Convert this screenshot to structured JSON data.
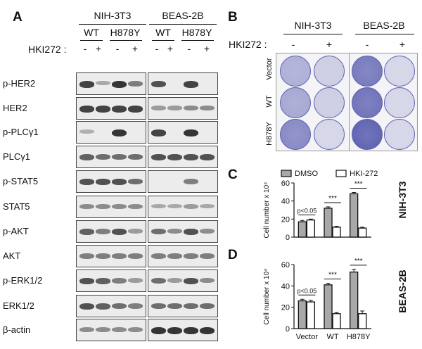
{
  "panel_a": {
    "letter": "A",
    "cell_lines": [
      "NIH-3T3",
      "BEAS-2B"
    ],
    "genotypes": [
      "WT",
      "H878Y",
      "WT",
      "H878Y"
    ],
    "treatment_label": "HKI272 :",
    "treatment_signs": [
      "-",
      "+",
      "-",
      "+",
      "-",
      "+",
      "-",
      "+"
    ],
    "rows": [
      "p-HER2",
      "HER2",
      "p-PLCγ1",
      "PLCγ1",
      "p-STAT5",
      "STAT5",
      "p-AKT",
      "AKT",
      "p-ERK1/2",
      "ERK1/2",
      "β-actin"
    ]
  },
  "panel_b": {
    "letter": "B",
    "cell_lines": [
      "NIH-3T3",
      "BEAS-2B"
    ],
    "treatment_label": "HKI272 :",
    "treatment_signs": [
      "-",
      "+",
      "-",
      "+"
    ],
    "row_labels": [
      "Vector",
      "WT",
      "H878Y"
    ],
    "colors": {
      "stain": "#5b5fb0",
      "plate": "#f4f4f6"
    }
  },
  "panel_c": {
    "letter": "C",
    "cell_line": "NIH-3T3"
  },
  "panel_d": {
    "letter": "D",
    "cell_line": "BEAS-2B"
  },
  "chart_data": [
    {
      "type": "bar",
      "panel": "C",
      "categories": [
        "Vector",
        "WT",
        "H878Y"
      ],
      "series": [
        {
          "name": "DMSO",
          "values": [
            17,
            32,
            48
          ],
          "errors": [
            1.5,
            1.5,
            1.5
          ],
          "color": "#a8a8a8"
        },
        {
          "name": "HKI-272",
          "values": [
            19,
            11,
            10
          ],
          "errors": [
            1.0,
            1.0,
            1.0
          ],
          "color": "#ffffff"
        }
      ],
      "ylabel": "Cell number x 10⁴",
      "ylim": [
        0,
        60
      ],
      "yticks": [
        0,
        20,
        40,
        60
      ],
      "show_xtick_labels": false,
      "legend": "top",
      "annotations": [
        "p<0.05",
        "***",
        "***"
      ]
    },
    {
      "type": "bar",
      "panel": "D",
      "categories": [
        "Vector",
        "WT",
        "H878Y"
      ],
      "series": [
        {
          "name": "DMSO",
          "values": [
            26,
            41,
            53
          ],
          "errors": [
            1.5,
            1.5,
            2.5
          ],
          "color": "#a8a8a8"
        },
        {
          "name": "HKI-272",
          "values": [
            25,
            14,
            14
          ],
          "errors": [
            1.5,
            1.0,
            2.5
          ],
          "color": "#ffffff"
        }
      ],
      "ylabel": "Cell number x 10⁴",
      "ylim": [
        0,
        60
      ],
      "yticks": [
        0,
        20,
        40,
        60
      ],
      "show_xtick_labels": true,
      "annotations": [
        "p<0.05",
        "***",
        "***"
      ]
    }
  ]
}
